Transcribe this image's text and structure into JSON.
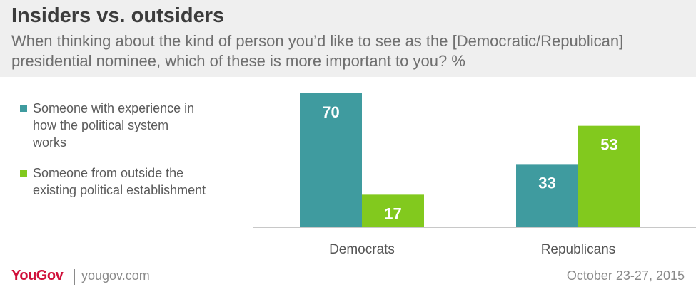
{
  "title": "Insiders vs. outsiders",
  "subtitle_lines": [
    "When thinking about the kind of person you’d like to see as the [Democratic/Republican]",
    "presidential nominee, which of these is more important to you? %"
  ],
  "legend": [
    {
      "lines": [
        "Someone with experience in",
        "how the political system",
        "works"
      ],
      "color": "#3f9b9f"
    },
    {
      "lines": [
        "Someone from outside the",
        "existing political establishment"
      ],
      "color": "#82c91e"
    }
  ],
  "footer": {
    "logo": "YouGov",
    "site": "yougov.com",
    "date": "October 23-27, 2015"
  },
  "chart_data": {
    "type": "bar",
    "categories": [
      "Democrats",
      "Republicans"
    ],
    "series": [
      {
        "name": "Someone with experience in how the political system works",
        "values": [
          70,
          33
        ],
        "color": "#3f9b9f"
      },
      {
        "name": "Someone from outside the existing political establishment",
        "values": [
          17,
          53
        ],
        "color": "#82c91e"
      }
    ],
    "ylim": [
      0,
      70
    ],
    "grid": false,
    "legend_position": "left",
    "data_labels": true
  }
}
